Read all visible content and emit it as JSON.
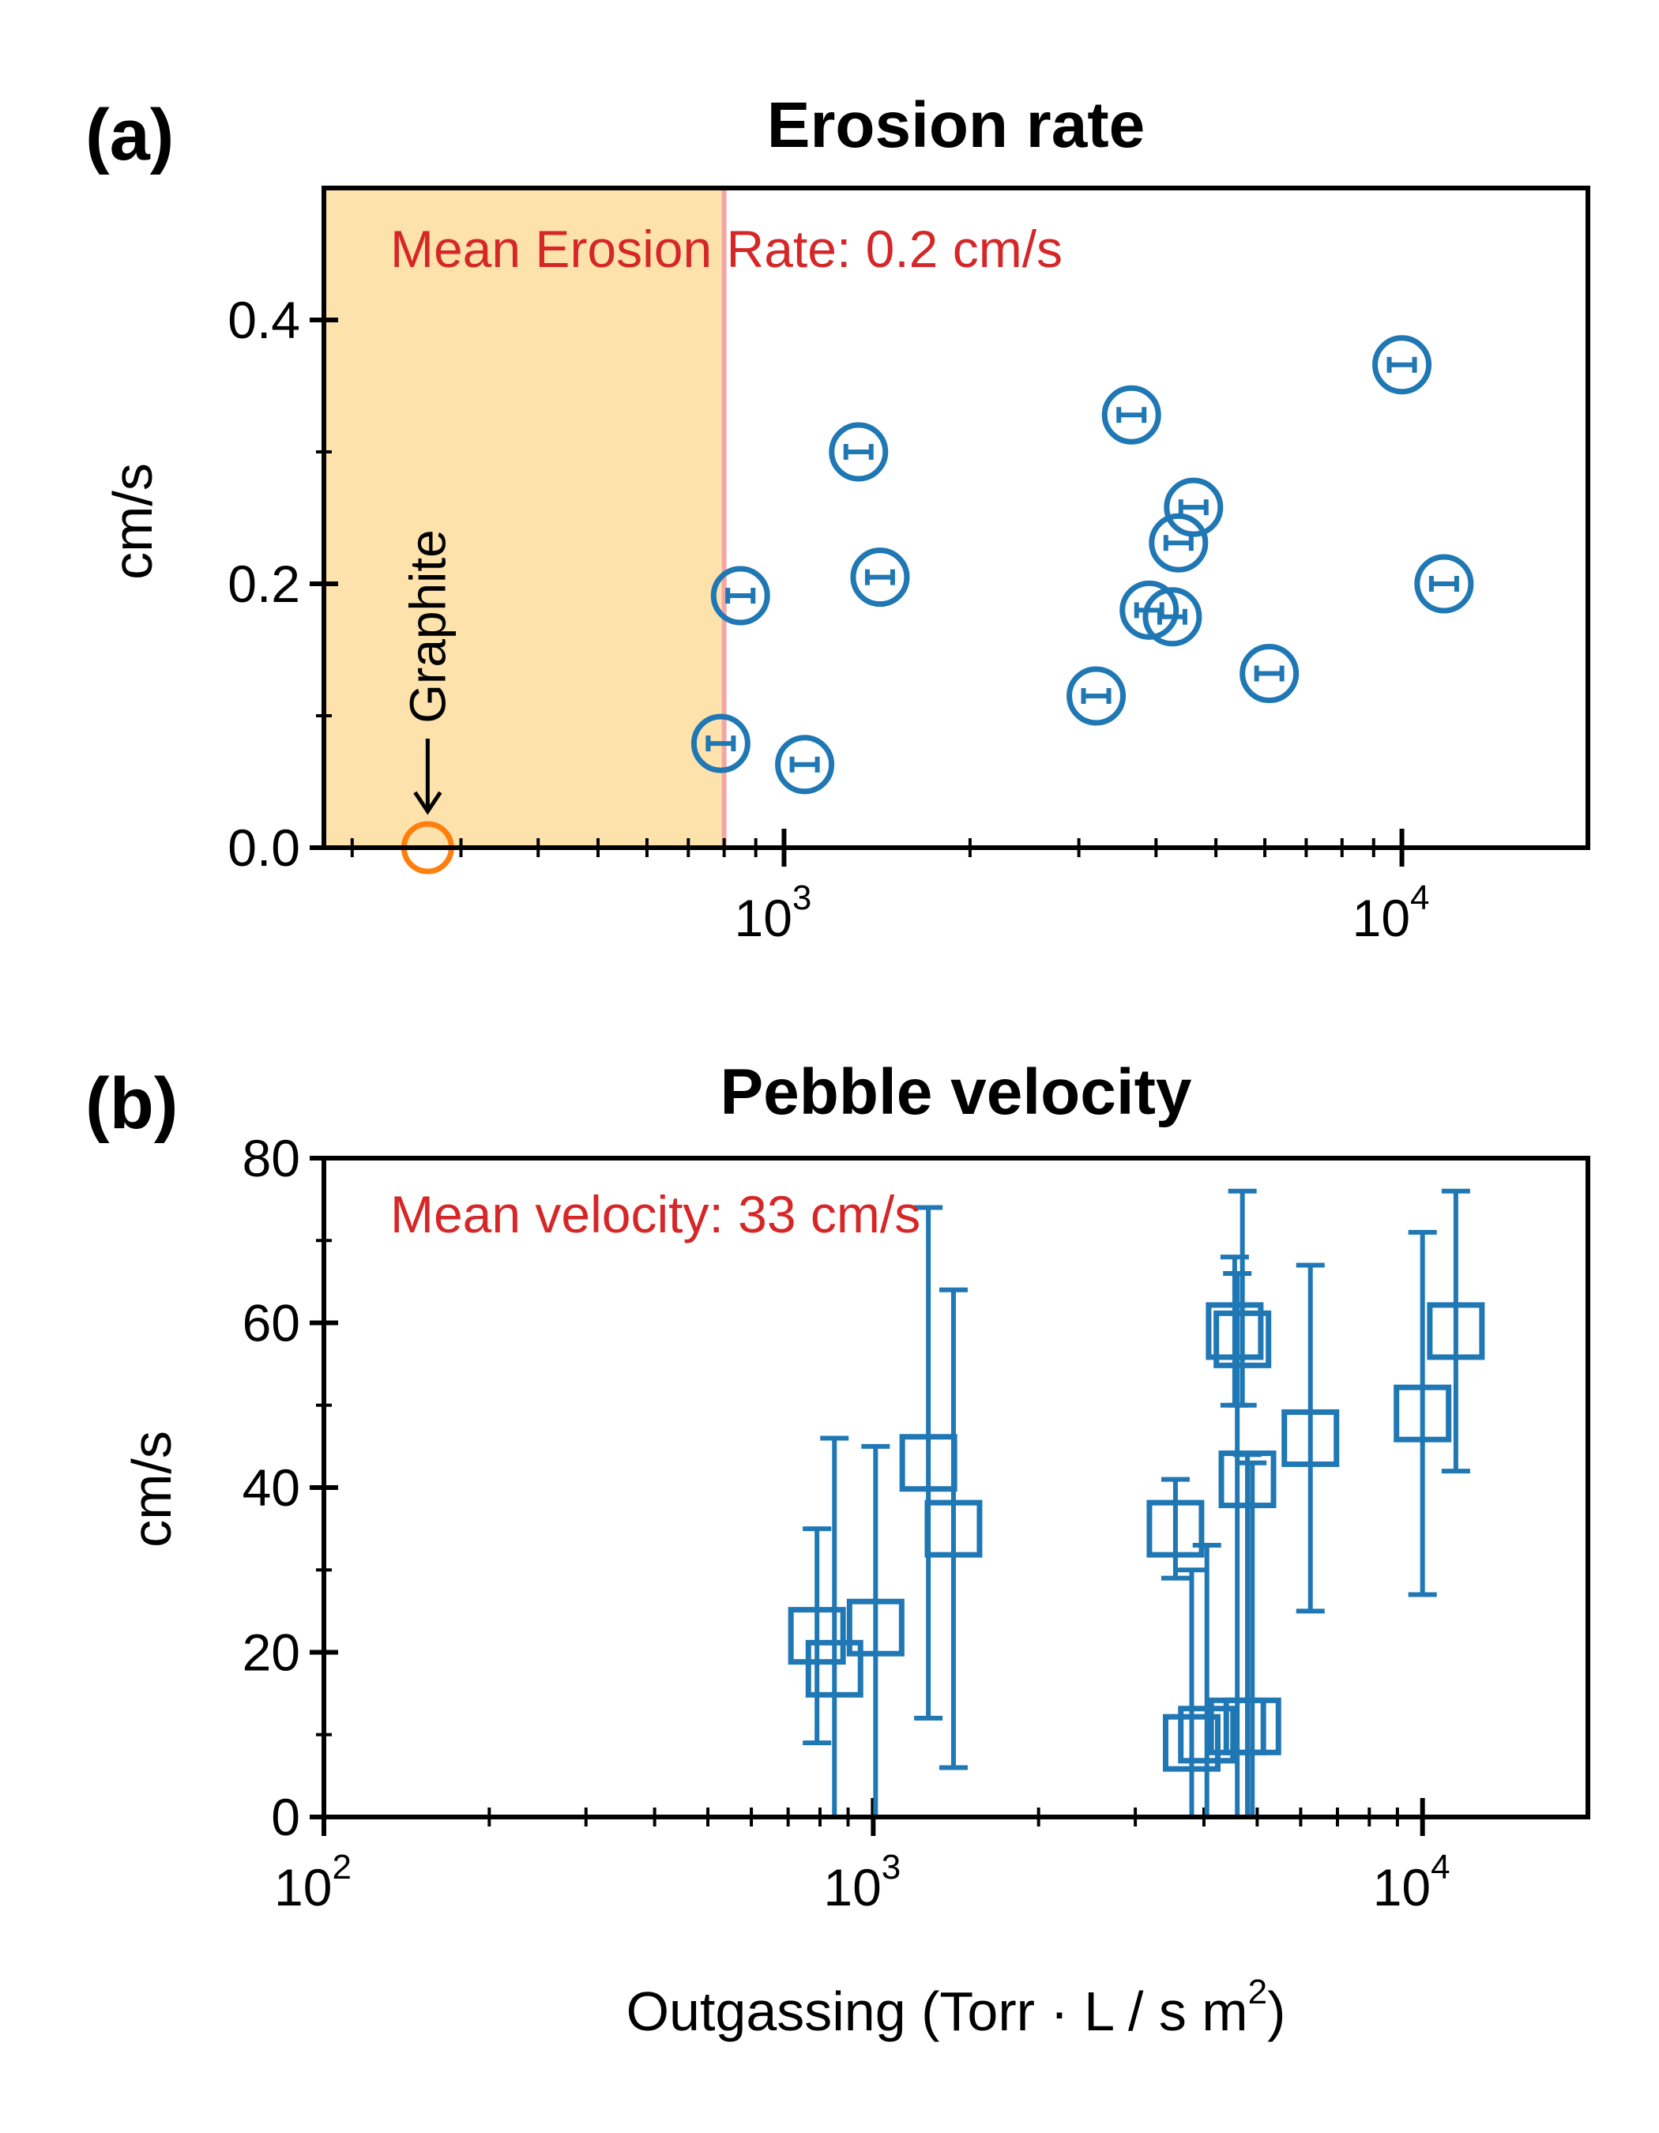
{
  "chart_data": [
    {
      "type": "scatter",
      "panel_label": "(a)",
      "title": "Erosion rate",
      "xlabel": "",
      "ylabel": "cm/s",
      "xscale": "log",
      "xlim": [
        180,
        20000
      ],
      "ylim": [
        0,
        0.5
      ],
      "y_ticks": [
        "0.0",
        "0.2",
        "0.4"
      ],
      "y_tick_values": [
        0,
        0.2,
        0.4
      ],
      "x_ticks": [
        {
          "value": 1000,
          "base": "10",
          "exp": "3"
        },
        {
          "value": 10000,
          "base": "10",
          "exp": "4"
        }
      ],
      "grid": false,
      "shaded_region": {
        "x_from": 180,
        "x_to": 800,
        "color": "#fde2ac",
        "edge_color": "#f4a6a6"
      },
      "annotation": "Mean Erosion Rate: 0.2 cm/s",
      "graphite": {
        "label": "Graphite",
        "x": 265,
        "y": 0.0,
        "color": "#ff7f0e"
      },
      "marker_color": "#1f77b4",
      "series": [
        {
          "points": [
            {
              "x": 790,
              "y": 0.079
            },
            {
              "x": 850,
              "y": 0.191
            },
            {
              "x": 1080,
              "y": 0.063
            },
            {
              "x": 1320,
              "y": 0.3
            },
            {
              "x": 1430,
              "y": 0.205
            },
            {
              "x": 3200,
              "y": 0.115
            },
            {
              "x": 3650,
              "y": 0.328
            },
            {
              "x": 3900,
              "y": 0.18
            },
            {
              "x": 4250,
              "y": 0.175
            },
            {
              "x": 4350,
              "y": 0.231
            },
            {
              "x": 4600,
              "y": 0.258
            },
            {
              "x": 6100,
              "y": 0.132
            },
            {
              "x": 10000,
              "y": 0.366
            },
            {
              "x": 11700,
              "y": 0.2
            }
          ]
        }
      ]
    },
    {
      "type": "scatter",
      "panel_label": "(b)",
      "title": "Pebble velocity",
      "xlabel_main": "Outgassing (Torr · L / s m",
      "xlabel_sup": "2",
      "xlabel_end": ")",
      "ylabel": "cm/s",
      "xscale": "log",
      "xlim": [
        100,
        20000
      ],
      "ylim": [
        0,
        80
      ],
      "y_ticks": [
        "0",
        "20",
        "40",
        "60",
        "80"
      ],
      "y_tick_values": [
        0,
        20,
        40,
        60,
        80
      ],
      "x_ticks": [
        {
          "value": 100,
          "base": "10",
          "exp": "2"
        },
        {
          "value": 1000,
          "base": "10",
          "exp": "3"
        },
        {
          "value": 10000,
          "base": "10",
          "exp": "4"
        }
      ],
      "grid": false,
      "annotation": "Mean velocity: 33 cm/s",
      "marker_color": "#1f77b4",
      "series": [
        {
          "points": [
            {
              "x": 790,
              "y": 22,
              "ylo": 9,
              "yhi": 35
            },
            {
              "x": 850,
              "y": 18,
              "ylo": 0,
              "yhi": 46
            },
            {
              "x": 1010,
              "y": 23,
              "ylo": 0,
              "yhi": 45
            },
            {
              "x": 1260,
              "y": 43,
              "ylo": 12,
              "yhi": 74
            },
            {
              "x": 1400,
              "y": 35,
              "ylo": 6,
              "yhi": 64
            },
            {
              "x": 3550,
              "y": 35,
              "ylo": 29,
              "yhi": 41
            },
            {
              "x": 3800,
              "y": 9,
              "ylo": 0,
              "yhi": 30
            },
            {
              "x": 4050,
              "y": 10,
              "ylo": 0,
              "yhi": 33
            },
            {
              "x": 4550,
              "y": 59,
              "ylo": 50,
              "yhi": 68
            },
            {
              "x": 4600,
              "y": 11,
              "ylo": 0,
              "yhi": 66
            },
            {
              "x": 4700,
              "y": 58,
              "ylo": 50,
              "yhi": 76
            },
            {
              "x": 4800,
              "y": 41,
              "ylo": 0,
              "yhi": 44
            },
            {
              "x": 4900,
              "y": 11,
              "ylo": 0,
              "yhi": 43
            },
            {
              "x": 6250,
              "y": 46,
              "ylo": 25,
              "yhi": 67
            },
            {
              "x": 10000,
              "y": 49,
              "ylo": 27,
              "yhi": 71
            },
            {
              "x": 11500,
              "y": 59,
              "ylo": 42,
              "yhi": 76
            }
          ]
        }
      ]
    }
  ]
}
